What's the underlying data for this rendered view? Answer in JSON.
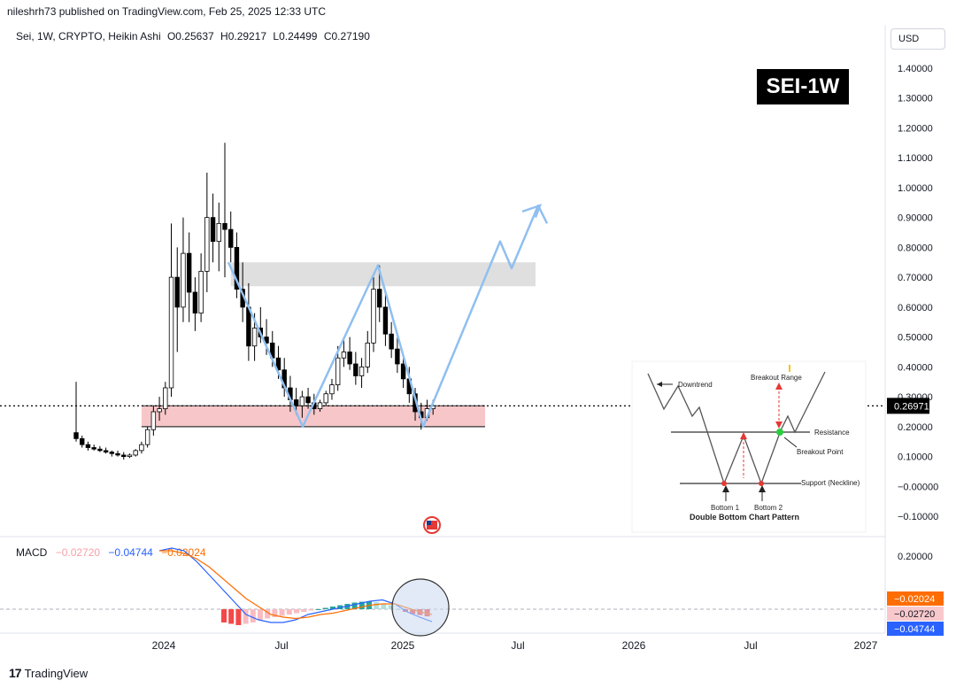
{
  "header": {
    "text": "nileshrh73 published on TradingView.com, Feb 25, 2025 12:33 UTC"
  },
  "legend": {
    "symbol": "Sei, 1W, CRYPTO, Heikin Ashi",
    "open": "O0.25637",
    "high": "H0.29217",
    "low": "L0.24499",
    "close": "C0.27190"
  },
  "currency_button": "USD",
  "badge": "SEI-1W",
  "macd": {
    "label": "MACD",
    "hist": "−0.02720",
    "macd": "−0.04744",
    "signal": "−0.02024"
  },
  "price_axis": {
    "ticks": [
      "1.40000",
      "1.30000",
      "1.20000",
      "1.10000",
      "1.00000",
      "0.90000",
      "0.80000",
      "0.70000",
      "0.60000",
      "0.50000",
      "0.40000",
      "0.30000",
      "0.20000",
      "0.10000",
      "−0.00000",
      "−0.10000"
    ],
    "last_price": "0.26971"
  },
  "macd_axis": {
    "ticks": [
      "0.20000"
    ],
    "tags": [
      "−0.02024",
      "−0.02720",
      "−0.04744"
    ]
  },
  "time_axis": [
    "2024",
    "Jul",
    "2025",
    "Jul",
    "2026",
    "Jul",
    "2027"
  ],
  "inset": {
    "labels": {
      "downtrend": "Downtrend",
      "breakout_range": "Breakout Range",
      "resistance": "Resistance",
      "breakout_point": "Breakout Point",
      "support": "Support (Neckline)",
      "bottom1": "Bottom 1",
      "bottom2": "Bottom 2",
      "title": "Double Bottom Chart Pattern"
    }
  },
  "colors": {
    "bull": "#000000",
    "bear": "#000000",
    "projection": "#90bff0",
    "resistance_zone": "#d9d9d9",
    "support_zone": "#f7c6c8",
    "macd_line": "#2962ff",
    "signal_line": "#ff6d00",
    "hist_neg": "#f44848",
    "hist_neg_light": "#f8bcc0",
    "hist_pos": "#26a69a",
    "hist_pos_light": "#b2dfdb"
  },
  "tradingview_logo": "TradingView",
  "chart_data": {
    "type": "candlestick",
    "style": "Heikin Ashi",
    "interval": "1W",
    "y_range": [
      -0.15,
      1.45
    ],
    "candles": [
      [
        0.18,
        0.35,
        0.15,
        0.16
      ],
      [
        0.16,
        0.17,
        0.13,
        0.14
      ],
      [
        0.14,
        0.15,
        0.12,
        0.13
      ],
      [
        0.13,
        0.14,
        0.12,
        0.125
      ],
      [
        0.125,
        0.135,
        0.115,
        0.12
      ],
      [
        0.12,
        0.13,
        0.11,
        0.115
      ],
      [
        0.115,
        0.12,
        0.1,
        0.11
      ],
      [
        0.11,
        0.12,
        0.1,
        0.105
      ],
      [
        0.105,
        0.115,
        0.09,
        0.1
      ],
      [
        0.1,
        0.11,
        0.095,
        0.105
      ],
      [
        0.105,
        0.125,
        0.1,
        0.12
      ],
      [
        0.12,
        0.15,
        0.11,
        0.14
      ],
      [
        0.14,
        0.2,
        0.13,
        0.19
      ],
      [
        0.19,
        0.27,
        0.17,
        0.25
      ],
      [
        0.25,
        0.3,
        0.22,
        0.26
      ],
      [
        0.26,
        0.35,
        0.24,
        0.33
      ],
      [
        0.33,
        0.88,
        0.3,
        0.7
      ],
      [
        0.7,
        0.8,
        0.45,
        0.6
      ],
      [
        0.6,
        0.9,
        0.55,
        0.78
      ],
      [
        0.78,
        0.85,
        0.55,
        0.65
      ],
      [
        0.65,
        0.7,
        0.52,
        0.58
      ],
      [
        0.58,
        0.78,
        0.55,
        0.72
      ],
      [
        0.72,
        1.05,
        0.65,
        0.9
      ],
      [
        0.9,
        0.98,
        0.75,
        0.82
      ],
      [
        0.82,
        0.95,
        0.72,
        0.88
      ],
      [
        0.88,
        1.15,
        0.7,
        0.86
      ],
      [
        0.86,
        0.92,
        0.75,
        0.8
      ],
      [
        0.8,
        0.85,
        0.63,
        0.66
      ],
      [
        0.66,
        0.75,
        0.55,
        0.6
      ],
      [
        0.6,
        0.68,
        0.42,
        0.47
      ],
      [
        0.47,
        0.58,
        0.42,
        0.53
      ],
      [
        0.53,
        0.6,
        0.48,
        0.5
      ],
      [
        0.5,
        0.56,
        0.44,
        0.48
      ],
      [
        0.48,
        0.52,
        0.4,
        0.43
      ],
      [
        0.43,
        0.47,
        0.36,
        0.39
      ],
      [
        0.39,
        0.43,
        0.3,
        0.33
      ],
      [
        0.33,
        0.37,
        0.25,
        0.29
      ],
      [
        0.29,
        0.33,
        0.24,
        0.27
      ],
      [
        0.27,
        0.32,
        0.23,
        0.3
      ],
      [
        0.3,
        0.33,
        0.26,
        0.28
      ],
      [
        0.28,
        0.31,
        0.24,
        0.26
      ],
      [
        0.26,
        0.29,
        0.25,
        0.28
      ],
      [
        0.28,
        0.32,
        0.27,
        0.31
      ],
      [
        0.31,
        0.36,
        0.29,
        0.34
      ],
      [
        0.34,
        0.47,
        0.32,
        0.43
      ],
      [
        0.43,
        0.5,
        0.4,
        0.45
      ],
      [
        0.45,
        0.5,
        0.39,
        0.41
      ],
      [
        0.41,
        0.45,
        0.34,
        0.37
      ],
      [
        0.37,
        0.43,
        0.33,
        0.4
      ],
      [
        0.4,
        0.52,
        0.38,
        0.48
      ],
      [
        0.48,
        0.7,
        0.45,
        0.66
      ],
      [
        0.66,
        0.74,
        0.55,
        0.6
      ],
      [
        0.6,
        0.65,
        0.47,
        0.51
      ],
      [
        0.51,
        0.55,
        0.43,
        0.46
      ],
      [
        0.46,
        0.5,
        0.38,
        0.41
      ],
      [
        0.41,
        0.44,
        0.33,
        0.36
      ],
      [
        0.36,
        0.4,
        0.28,
        0.31
      ],
      [
        0.31,
        0.33,
        0.22,
        0.25
      ],
      [
        0.25,
        0.28,
        0.19,
        0.23
      ],
      [
        0.23,
        0.29,
        0.22,
        0.26
      ],
      [
        0.26,
        0.29,
        0.24,
        0.27
      ]
    ],
    "resistance_zone": [
      0.67,
      0.75
    ],
    "support_zone": [
      0.2,
      0.27
    ],
    "current_price": 0.26971,
    "projection_path": [
      0.75,
      0.2,
      0.74,
      0.2,
      0.82,
      0.73,
      0.94,
      0.88
    ],
    "macd": {
      "y_range": [
        -0.08,
        0.26
      ],
      "macd_line": [
        0.22,
        0.23,
        0.22,
        0.18,
        0.13,
        0.08,
        0.03,
        -0.02,
        -0.04,
        -0.05,
        -0.05,
        -0.04,
        -0.02,
        -0.01,
        0.0,
        0.01,
        0.02,
        0.03,
        0.035,
        0.02,
        -0.01,
        -0.03,
        -0.047
      ],
      "signal_line": [
        0.22,
        0.22,
        0.21,
        0.19,
        0.16,
        0.12,
        0.08,
        0.04,
        0.01,
        -0.02,
        -0.03,
        -0.035,
        -0.03,
        -0.02,
        -0.015,
        -0.005,
        0.005,
        0.015,
        0.02,
        0.02,
        0.005,
        -0.01,
        -0.02
      ],
      "histogram": [
        -0.05,
        -0.055,
        -0.06,
        -0.055,
        -0.05,
        -0.04,
        -0.035,
        -0.03,
        -0.025,
        -0.02,
        -0.015,
        -0.01,
        -0.005,
        0.0,
        0.005,
        0.01,
        0.015,
        0.02,
        0.025,
        0.028,
        0.03,
        0.027,
        0.02,
        0.015,
        0.0,
        -0.01,
        -0.018,
        -0.022,
        -0.027
      ]
    }
  }
}
